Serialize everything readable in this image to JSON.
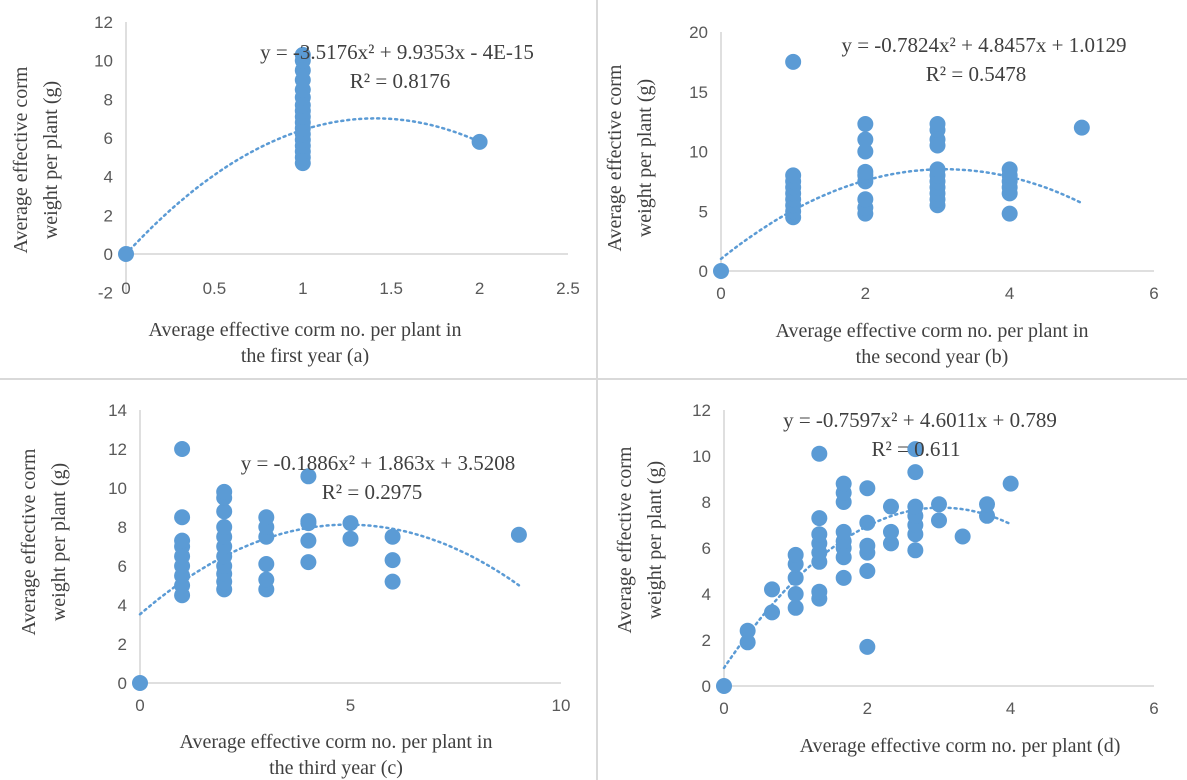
{
  "colors": {
    "point": "#5b9bd5",
    "trend": "#5b9bd5",
    "divider": "#d9d9d9"
  },
  "chart_data": [
    {
      "type": "scatter",
      "id": "a",
      "xlabel": [
        "Average effective corm no. per plant in",
        "the first year (a)"
      ],
      "ylabel": [
        "Average effective corm",
        "weight per plant (g)"
      ],
      "xlim": [
        0,
        2.5
      ],
      "ylim": [
        -2,
        12
      ],
      "xticks": [
        0,
        0.5,
        1,
        1.5,
        2,
        2.5
      ],
      "xtick_labels": [
        "0",
        "0.5",
        "1",
        "1.5",
        "2",
        "2.5"
      ],
      "yticks": [
        -2,
        0,
        2,
        4,
        6,
        8,
        10,
        12
      ],
      "ytick_labels": [
        "-2",
        "0",
        "2",
        "4",
        "6",
        "8",
        "10",
        "12"
      ],
      "equation": "y = -3.5176x² + 9.9353x - 4E-15",
      "r2": "R² = 0.8176",
      "trendline": {
        "a": -3.5176,
        "b": 9.9353,
        "c": 0,
        "x_from": 0,
        "x_to": 2
      },
      "points": [
        [
          0,
          0
        ],
        [
          1,
          4.7
        ],
        [
          1,
          5.0
        ],
        [
          1,
          5.3
        ],
        [
          1,
          5.6
        ],
        [
          1,
          5.9
        ],
        [
          1,
          6.2
        ],
        [
          1,
          6.5
        ],
        [
          1,
          6.8
        ],
        [
          1,
          7.1
        ],
        [
          1,
          7.4
        ],
        [
          1,
          7.7
        ],
        [
          1,
          8.1
        ],
        [
          1,
          8.5
        ],
        [
          1,
          9.0
        ],
        [
          1,
          9.5
        ],
        [
          1,
          10.0
        ],
        [
          1,
          10.3
        ],
        [
          2,
          5.8
        ]
      ]
    },
    {
      "type": "scatter",
      "id": "b",
      "xlabel": [
        "Average effective corm no. per plant in",
        "the second year (b)"
      ],
      "ylabel": [
        "Average effective corm",
        "weight per plant (g)"
      ],
      "xlim": [
        0,
        6
      ],
      "ylim": [
        0,
        20
      ],
      "xticks": [
        0,
        2,
        4,
        6
      ],
      "xtick_labels": [
        "0",
        "2",
        "4",
        "6"
      ],
      "yticks": [
        0,
        5,
        10,
        15,
        20
      ],
      "ytick_labels": [
        "0",
        "5",
        "10",
        "15",
        "20"
      ],
      "equation": "y = -0.7824x² + 4.8457x + 1.0129",
      "r2": "R² = 0.5478",
      "trendline": {
        "a": -0.7824,
        "b": 4.8457,
        "c": 1.0129,
        "x_from": 0,
        "x_to": 5
      },
      "points": [
        [
          0,
          0
        ],
        [
          1,
          17.5
        ],
        [
          1,
          4.5
        ],
        [
          1,
          5.0
        ],
        [
          1,
          5.5
        ],
        [
          1,
          6.0
        ],
        [
          1,
          6.5
        ],
        [
          1,
          7.0
        ],
        [
          1,
          7.5
        ],
        [
          1,
          8.0
        ],
        [
          2,
          4.8
        ],
        [
          2,
          5.3
        ],
        [
          2,
          6.0
        ],
        [
          2,
          7.5
        ],
        [
          2,
          8.0
        ],
        [
          2,
          8.3
        ],
        [
          2,
          10.0
        ],
        [
          2,
          11.0
        ],
        [
          2,
          12.3
        ],
        [
          3,
          5.5
        ],
        [
          3,
          6.0
        ],
        [
          3,
          6.5
        ],
        [
          3,
          7.0
        ],
        [
          3,
          7.5
        ],
        [
          3,
          8.0
        ],
        [
          3,
          8.5
        ],
        [
          3,
          10.5
        ],
        [
          3,
          11.0
        ],
        [
          3,
          11.8
        ],
        [
          3,
          12.3
        ],
        [
          4,
          4.8
        ],
        [
          4,
          6.5
        ],
        [
          4,
          7.0
        ],
        [
          4,
          7.5
        ],
        [
          4,
          8.0
        ],
        [
          4,
          8.5
        ],
        [
          5,
          12.0
        ]
      ]
    },
    {
      "type": "scatter",
      "id": "c",
      "xlabel": [
        "Average effective corm no. per plant in",
        "the third year (c)"
      ],
      "ylabel": [
        "Average effective corm",
        "weight per plant (g)"
      ],
      "xlim": [
        0,
        10
      ],
      "ylim": [
        0,
        14
      ],
      "xticks": [
        0,
        5,
        10
      ],
      "xtick_labels": [
        "0",
        "5",
        "10"
      ],
      "yticks": [
        0,
        2,
        4,
        6,
        8,
        10,
        12,
        14
      ],
      "ytick_labels": [
        "0",
        "2",
        "4",
        "6",
        "8",
        "10",
        "12",
        "14"
      ],
      "equation": "y = -0.1886x² + 1.863x + 3.5208",
      "r2": "R² = 0.2975",
      "trendline": {
        "a": -0.1886,
        "b": 1.863,
        "c": 3.5208,
        "x_from": 0,
        "x_to": 9
      },
      "points": [
        [
          0,
          0
        ],
        [
          1,
          12.0
        ],
        [
          1,
          4.5
        ],
        [
          1,
          5.0
        ],
        [
          1,
          5.5
        ],
        [
          1,
          6.0
        ],
        [
          1,
          6.5
        ],
        [
          1,
          7.0
        ],
        [
          1,
          7.3
        ],
        [
          1,
          8.5
        ],
        [
          2,
          4.8
        ],
        [
          2,
          5.2
        ],
        [
          2,
          5.6
        ],
        [
          2,
          6.0
        ],
        [
          2,
          6.5
        ],
        [
          2,
          7.0
        ],
        [
          2,
          7.5
        ],
        [
          2,
          8.0
        ],
        [
          2,
          8.8
        ],
        [
          2,
          9.5
        ],
        [
          2,
          9.8
        ],
        [
          3,
          4.8
        ],
        [
          3,
          5.3
        ],
        [
          3,
          6.1
        ],
        [
          3,
          7.5
        ],
        [
          3,
          8.0
        ],
        [
          3,
          8.5
        ],
        [
          4,
          6.2
        ],
        [
          4,
          7.3
        ],
        [
          4,
          8.2
        ],
        [
          4,
          8.3
        ],
        [
          4,
          10.6
        ],
        [
          5,
          7.4
        ],
        [
          5,
          8.2
        ],
        [
          6,
          5.2
        ],
        [
          6,
          6.3
        ],
        [
          6,
          7.5
        ],
        [
          9,
          7.6
        ]
      ]
    },
    {
      "type": "scatter",
      "id": "d",
      "xlabel": [
        "Average effective corm no. per plant  (d)"
      ],
      "ylabel": [
        "Average effective corm",
        "weight per plant (g)"
      ],
      "xlim": [
        0,
        6
      ],
      "ylim": [
        0,
        12
      ],
      "xticks": [
        0,
        2,
        4,
        6
      ],
      "xtick_labels": [
        "0",
        "2",
        "4",
        "6"
      ],
      "yticks": [
        0,
        2,
        4,
        6,
        8,
        10,
        12
      ],
      "ytick_labels": [
        "0",
        "2",
        "4",
        "6",
        "8",
        "10",
        "12"
      ],
      "equation": "y = -0.7597x² + 4.6011x + 0.789",
      "r2": "R² = 0.611",
      "trendline": {
        "a": -0.7597,
        "b": 4.6011,
        "c": 0.789,
        "x_from": 0,
        "x_to": 4
      },
      "points": [
        [
          0,
          0
        ],
        [
          0.33,
          1.9
        ],
        [
          0.33,
          2.4
        ],
        [
          0.67,
          3.2
        ],
        [
          0.67,
          4.2
        ],
        [
          1,
          3.4
        ],
        [
          1,
          4.0
        ],
        [
          1,
          4.7
        ],
        [
          1,
          5.3
        ],
        [
          1,
          5.7
        ],
        [
          1.33,
          3.8
        ],
        [
          1.33,
          4.1
        ],
        [
          1.33,
          5.4
        ],
        [
          1.33,
          5.8
        ],
        [
          1.33,
          6.2
        ],
        [
          1.33,
          6.6
        ],
        [
          1.33,
          7.3
        ],
        [
          1.33,
          10.1
        ],
        [
          1.67,
          4.7
        ],
        [
          1.67,
          5.6
        ],
        [
          1.67,
          6.0
        ],
        [
          1.67,
          6.3
        ],
        [
          1.67,
          6.7
        ],
        [
          1.67,
          8.0
        ],
        [
          1.67,
          8.4
        ],
        [
          1.67,
          8.8
        ],
        [
          2,
          1.7
        ],
        [
          2,
          5.0
        ],
        [
          2,
          5.8
        ],
        [
          2,
          6.1
        ],
        [
          2,
          7.1
        ],
        [
          2,
          8.6
        ],
        [
          2.33,
          6.2
        ],
        [
          2.33,
          6.7
        ],
        [
          2.33,
          7.8
        ],
        [
          2.67,
          5.9
        ],
        [
          2.67,
          6.6
        ],
        [
          2.67,
          7.0
        ],
        [
          2.67,
          7.4
        ],
        [
          2.67,
          7.8
        ],
        [
          2.67,
          9.3
        ],
        [
          2.67,
          10.3
        ],
        [
          3,
          7.2
        ],
        [
          3,
          7.9
        ],
        [
          3.33,
          6.5
        ],
        [
          3.67,
          7.4
        ],
        [
          3.67,
          7.9
        ],
        [
          4,
          8.8
        ]
      ]
    }
  ]
}
